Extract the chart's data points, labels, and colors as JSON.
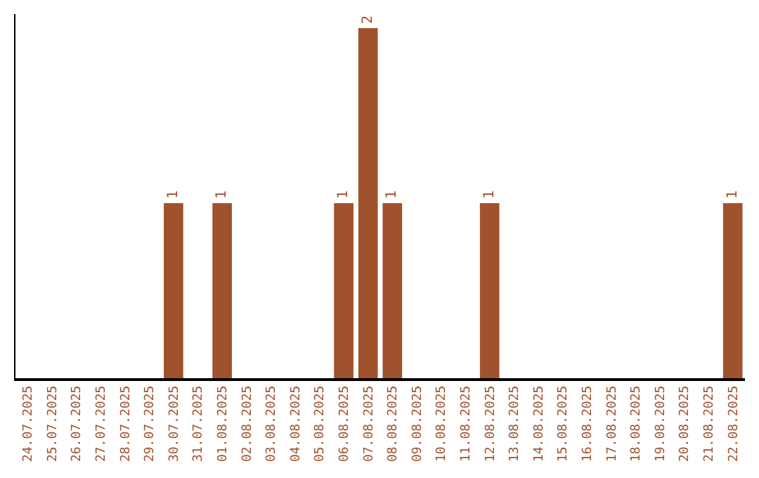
{
  "chart_data": {
    "type": "bar",
    "categories": [
      "24.07.2025",
      "25.07.2025",
      "26.07.2025",
      "27.07.2025",
      "28.07.2025",
      "29.07.2025",
      "30.07.2025",
      "31.07.2025",
      "01.08.2025",
      "02.08.2025",
      "03.08.2025",
      "04.08.2025",
      "05.08.2025",
      "06.08.2025",
      "07.08.2025",
      "08.08.2025",
      "09.08.2025",
      "10.08.2025",
      "11.08.2025",
      "12.08.2025",
      "13.08.2025",
      "14.08.2025",
      "15.08.2025",
      "16.08.2025",
      "17.08.2025",
      "18.08.2025",
      "19.08.2025",
      "20.08.2025",
      "21.08.2025",
      "22.08.2025"
    ],
    "values": [
      0,
      0,
      0,
      0,
      0,
      0,
      1,
      0,
      1,
      0,
      0,
      0,
      0,
      1,
      2,
      1,
      0,
      0,
      0,
      1,
      0,
      0,
      0,
      0,
      0,
      0,
      0,
      0,
      0,
      1
    ],
    "value_labels": [
      null,
      null,
      null,
      null,
      null,
      null,
      "1",
      null,
      "1",
      null,
      null,
      null,
      null,
      "1",
      "2",
      "1",
      null,
      null,
      null,
      "1",
      null,
      null,
      null,
      null,
      null,
      null,
      null,
      null,
      null,
      "1"
    ],
    "color": "#a0522d",
    "ylim": [
      0,
      2.08
    ],
    "tick_labels": "x",
    "legend": false
  }
}
